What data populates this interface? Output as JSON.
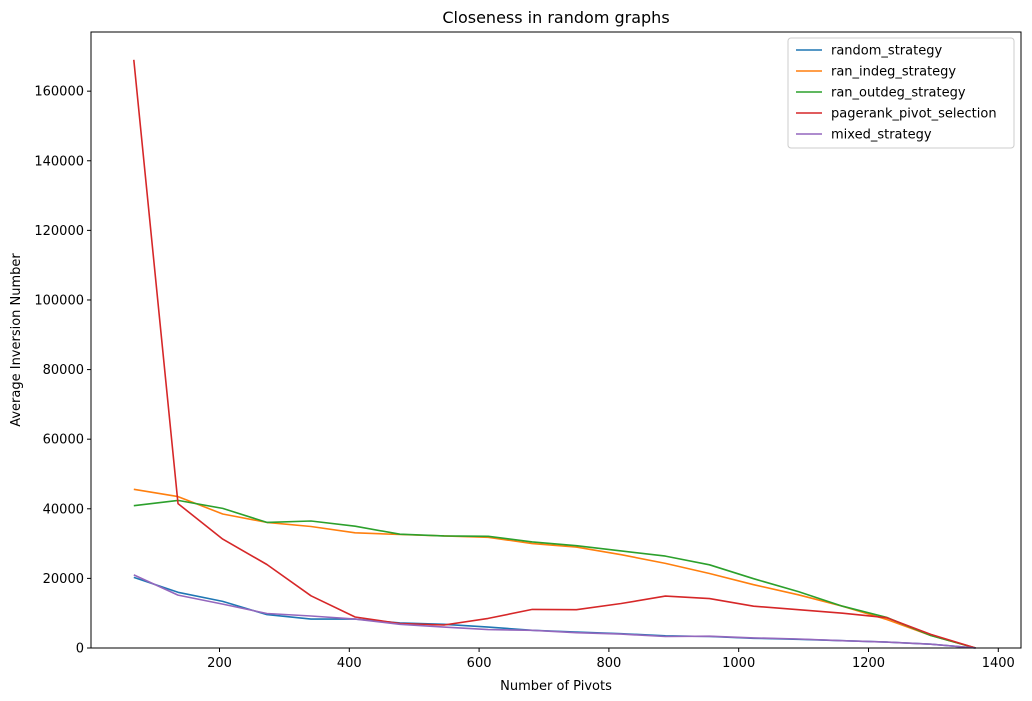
{
  "chart_data": {
    "type": "line",
    "title": "Closeness in random graphs",
    "xlabel": "Number of Pivots",
    "ylabel": "Average Inversion Number",
    "xlim": [
      2,
      1435
    ],
    "ylim": [
      0,
      177000
    ],
    "xticks": [
      200,
      400,
      600,
      800,
      1000,
      1200,
      1400
    ],
    "yticks": [
      0,
      20000,
      40000,
      60000,
      80000,
      100000,
      120000,
      140000,
      160000
    ],
    "legend_position": "top-right",
    "x": [
      68,
      136,
      205,
      273,
      341,
      409,
      478,
      546,
      614,
      682,
      750,
      819,
      887,
      955,
      1023,
      1092,
      1160,
      1228,
      1296,
      1365
    ],
    "series": [
      {
        "name": "random_strategy",
        "color": "#1f77b4",
        "values": [
          20300,
          16000,
          13400,
          9600,
          8300,
          8300,
          7200,
          6800,
          6000,
          5100,
          4600,
          4100,
          3500,
          3300,
          2800,
          2500,
          2100,
          1700,
          1100,
          0
        ]
      },
      {
        "name": "ran_indeg_strategy",
        "color": "#ff7f0e",
        "values": [
          45600,
          43500,
          38500,
          36100,
          34900,
          33100,
          32600,
          32200,
          31800,
          30000,
          29000,
          26800,
          24300,
          21400,
          18200,
          15300,
          12000,
          8200,
          3600,
          0
        ]
      },
      {
        "name": "ran_outdeg_strategy",
        "color": "#2ca02c",
        "values": [
          40900,
          42400,
          40100,
          36100,
          36500,
          35000,
          32700,
          32200,
          32100,
          30500,
          29400,
          27900,
          26400,
          23900,
          19900,
          16200,
          12000,
          8800,
          3600,
          0
        ]
      },
      {
        "name": "pagerank_pivot_selection",
        "color": "#d62728",
        "values": [
          169000,
          41500,
          31300,
          24000,
          15000,
          8900,
          7000,
          6600,
          8500,
          11100,
          11000,
          12800,
          14900,
          14200,
          12000,
          11000,
          10000,
          8700,
          3900,
          0
        ]
      },
      {
        "name": "mixed_strategy",
        "color": "#9467bd",
        "values": [
          21000,
          15200,
          12600,
          9900,
          9200,
          8300,
          6800,
          6000,
          5300,
          5100,
          4400,
          4000,
          3300,
          3400,
          2900,
          2600,
          2100,
          1700,
          1100,
          0
        ]
      }
    ]
  }
}
